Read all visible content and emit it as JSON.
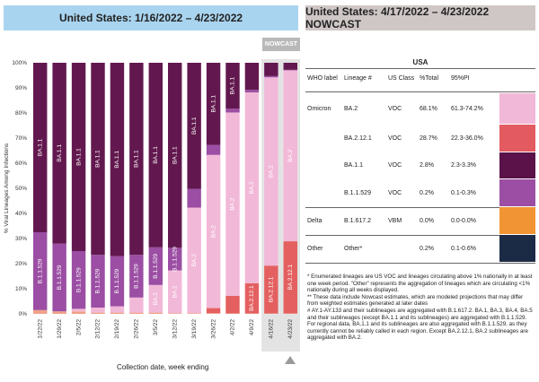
{
  "left_header": "United States: 1/16/2022 – 4/23/2022",
  "right_header": "United States: 4/17/2022 – 4/23/2022 NOWCAST",
  "nowcast_label": "NOWCAST",
  "chart_data": {
    "type": "bar",
    "stacked": true,
    "categories": [
      "1/22/22",
      "1/29/22",
      "2/5/22",
      "2/12/22",
      "2/19/22",
      "2/26/22",
      "3/5/22",
      "3/12/22",
      "3/19/22",
      "3/26/22",
      "4/2/22",
      "4/9/22",
      "4/16/22",
      "4/23/22"
    ],
    "ylabel": "% Viral Lineages Among Infections",
    "xlabel": "Collection date, week ending",
    "yticks": [
      "0%",
      "10%",
      "20%",
      "30%",
      "40%",
      "50%",
      "60%",
      "70%",
      "80%",
      "90%",
      "100%"
    ],
    "ylim": [
      0,
      100
    ],
    "nowcast_from_index": 12,
    "series": [
      {
        "name": "Other",
        "color": "#f0a088",
        "values": [
          1.5,
          1,
          1,
          0.5,
          0.5,
          0.5,
          0.5,
          0.3,
          0.3,
          0.3,
          0.2,
          0.2,
          0.2,
          0.2
        ]
      },
      {
        "name": "BA.2.12.1",
        "color": "#e46060",
        "values": [
          0,
          0,
          0,
          0,
          0,
          0,
          0,
          0,
          0,
          2,
          7,
          12,
          19,
          28.7
        ]
      },
      {
        "name": "BA.2",
        "color": "#f2b8d8",
        "values": [
          0,
          0,
          1,
          2,
          2.5,
          6,
          11,
          17,
          42,
          61,
          73,
          76,
          75,
          68.1
        ]
      },
      {
        "name": "B.1.1.529",
        "color": "#9b4ea3",
        "values": [
          31,
          27,
          23,
          21,
          20,
          17,
          15,
          9,
          7.5,
          4,
          1.5,
          1,
          0.5,
          0.2
        ]
      },
      {
        "name": "BA.1.1",
        "color": "#62184e",
        "values": [
          67.5,
          72,
          75,
          76.5,
          77,
          76.5,
          73.5,
          73.7,
          50.2,
          32.7,
          18.3,
          10.8,
          5.3,
          2.8
        ]
      }
    ],
    "bar_labels": [
      [
        {
          "s": 4,
          "t": "BA.1.1"
        },
        {
          "s": 3,
          "t": "B.1.1.529"
        }
      ],
      [
        {
          "s": 4,
          "t": "BA.1.1"
        },
        {
          "s": 3,
          "t": "B.1.1.529"
        }
      ],
      [
        {
          "s": 4,
          "t": "BA.1.1"
        },
        {
          "s": 3,
          "t": "B.1.1.529"
        }
      ],
      [
        {
          "s": 4,
          "t": "BA.1.1"
        },
        {
          "s": 3,
          "t": "B.1.1.529"
        }
      ],
      [
        {
          "s": 4,
          "t": "BA.1.1"
        },
        {
          "s": 3,
          "t": "B.1.1.529"
        }
      ],
      [
        {
          "s": 4,
          "t": "BA.1.1"
        },
        {
          "s": 3,
          "t": "B.1.1.529"
        }
      ],
      [
        {
          "s": 4,
          "t": "BA.1.1"
        },
        {
          "s": 3,
          "t": "B.1.1.529"
        },
        {
          "s": 2,
          "t": "BA.2"
        }
      ],
      [
        {
          "s": 4,
          "t": "BA.1.1"
        },
        {
          "s": 3,
          "t": "B.1.1.529"
        },
        {
          "s": 2,
          "t": "BA.2"
        }
      ],
      [
        {
          "s": 4,
          "t": "BA.1.1"
        },
        {
          "s": 2,
          "t": "BA.2"
        }
      ],
      [
        {
          "s": 4,
          "t": "BA.1.1"
        },
        {
          "s": 2,
          "t": "BA.2"
        }
      ],
      [
        {
          "s": 4,
          "t": "BA.1.1"
        },
        {
          "s": 2,
          "t": "BA.2"
        }
      ],
      [
        {
          "s": 2,
          "t": "BA.2"
        },
        {
          "s": 1,
          "t": "BA.2.12.1"
        }
      ],
      [
        {
          "s": 2,
          "t": "BA.2"
        },
        {
          "s": 1,
          "t": "BA.2.12.1"
        }
      ],
      [
        {
          "s": 2,
          "t": "BA.2"
        },
        {
          "s": 1,
          "t": "BA.2.12.1"
        }
      ]
    ]
  },
  "table": {
    "title": "USA",
    "columns": [
      "WHO label",
      "Lineage #",
      "US Class",
      "%Total",
      "95%PI"
    ],
    "rows": [
      {
        "who": "Omicron",
        "lineage": "BA.2",
        "cls": "VOC",
        "pct": "68.1%",
        "pi": "61.3-74.2%",
        "color": "#f2b8d8"
      },
      {
        "who": "",
        "lineage": "BA.2.12.1",
        "cls": "VOC",
        "pct": "28.7%",
        "pi": "22.3-36.0%",
        "color": "#e35a60"
      },
      {
        "who": "",
        "lineage": "BA.1.1",
        "cls": "VOC",
        "pct": "2.8%",
        "pi": "2.3-3.3%",
        "color": "#5a1248"
      },
      {
        "who": "",
        "lineage": "B.1.1.529",
        "cls": "VOC",
        "pct": "0.2%",
        "pi": "0.1-0.3%",
        "color": "#9b4ea3"
      },
      {
        "who": "Delta",
        "lineage": "B.1.617.2",
        "cls": "VBM",
        "pct": "0.0%",
        "pi": "0.0-0.0%",
        "color": "#f19433"
      },
      {
        "who": "Other",
        "lineage": "Other*",
        "cls": "",
        "pct": "0.2%",
        "pi": "0.1-0.6%",
        "color": "#1c2b45"
      }
    ]
  },
  "notes": [
    "*      Enumerated lineages are US VOC and lineages circulating above 1% nationally in at least one week period. \"Other\" represents the aggregation of lineages which are circulating <1% nationally during all weeks displayed.",
    "**     These data include Nowcast estimates, which are modeled projections that may differ from weighted estimates generated at later dates",
    "#     AY.1-AY.133 and their sublineages are aggregated with B.1.617.2. BA.1, BA.3, BA.4, BA.5 and their sublineages (except BA.1.1 and its sublineages) are aggregated with B.1.1.529. For regional data, BA.1.1 and its sublineages are also aggregated with B.1.1.529, as they currently cannot be reliably called in each region. Except BA.2.12.1, BA.2 sublineages are aggregated with BA.2."
  ]
}
